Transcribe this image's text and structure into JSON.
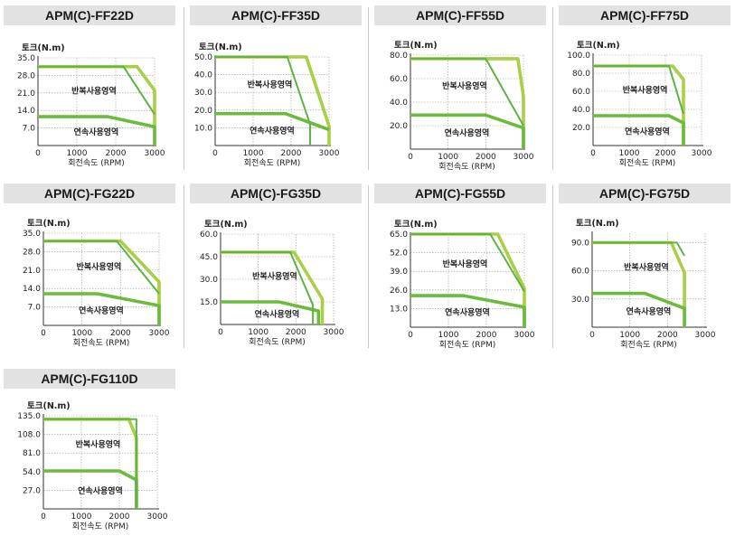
{
  "chart_data": [
    {
      "type": "line",
      "title": "APM(C)-FF22D",
      "ylabel": "토크(N.m)",
      "xlabel": "회전속도 (RPM)",
      "xlim": [
        0,
        3000
      ],
      "ylim": [
        0,
        35
      ],
      "xticks": [
        0,
        1000,
        2000,
        3000
      ],
      "xtick_labels": [
        "0",
        "1000",
        "2000",
        "3000"
      ],
      "yticks": [
        7,
        14,
        21,
        28,
        35
      ],
      "ytick_labels": [
        "7.0",
        "14.0",
        "21.0",
        "28.0",
        "35.0"
      ],
      "regions": {
        "repeated": "반복사용영역",
        "continuous": "연속사용영역"
      },
      "series": [
        {
          "role": "repeated-light",
          "x": [
            0,
            2550,
            3000,
            3000
          ],
          "y": [
            31.5,
            31.5,
            22,
            7
          ]
        },
        {
          "role": "repeated-dark",
          "x": [
            0,
            2200,
            3000
          ],
          "y": [
            31.5,
            31.5,
            12.5
          ]
        },
        {
          "role": "continuous",
          "x": [
            0,
            1800,
            3000,
            3000
          ],
          "y": [
            11.5,
            11.5,
            7.5,
            0
          ]
        }
      ]
    },
    {
      "type": "line",
      "title": "APM(C)-FF35D",
      "ylabel": "토크(N.m)",
      "xlabel": "회전속도 (RPM)",
      "xlim": [
        0,
        3000
      ],
      "ylim": [
        0,
        50
      ],
      "xticks": [
        0,
        1000,
        2000,
        3000
      ],
      "xtick_labels": [
        "0",
        "1000",
        "2000",
        "3000"
      ],
      "yticks": [
        10,
        20,
        30,
        40,
        50
      ],
      "ytick_labels": [
        "10.0",
        "20.0",
        "30.0",
        "40.0",
        "50.0"
      ],
      "regions": {
        "repeated": "반복사용영역",
        "continuous": "연속사용영역"
      },
      "series": [
        {
          "role": "repeated-light",
          "x": [
            0,
            2400,
            3000,
            3000
          ],
          "y": [
            50,
            50,
            11,
            0
          ]
        },
        {
          "role": "repeated-dark",
          "x": [
            0,
            1900,
            2500,
            2500
          ],
          "y": [
            50,
            50,
            12,
            0
          ]
        },
        {
          "role": "continuous",
          "x": [
            0,
            1850,
            2550,
            3000
          ],
          "y": [
            18,
            18,
            12.5,
            9
          ]
        }
      ]
    },
    {
      "type": "line",
      "title": "APM(C)-FF55D",
      "ylabel": "토크(N.m)",
      "xlabel": "회전속도 (RPM)",
      "xlim": [
        0,
        3000
      ],
      "ylim": [
        0,
        80
      ],
      "xticks": [
        0,
        1000,
        2000,
        3000
      ],
      "xtick_labels": [
        "0",
        "1000",
        "2000",
        "3000"
      ],
      "yticks": [
        20,
        40,
        60,
        80
      ],
      "ytick_labels": [
        "20.0",
        "40.0",
        "60.0",
        "80.0"
      ],
      "regions": {
        "repeated": "반복사용영역",
        "continuous": "연속사용영역"
      },
      "series": [
        {
          "role": "repeated-light",
          "x": [
            0,
            2850,
            3000,
            3000
          ],
          "y": [
            77,
            77,
            45,
            0
          ]
        },
        {
          "role": "repeated-dark",
          "x": [
            0,
            2000,
            3000
          ],
          "y": [
            77,
            77,
            20
          ]
        },
        {
          "role": "continuous",
          "x": [
            0,
            2000,
            3000,
            3000
          ],
          "y": [
            29,
            29,
            18,
            0
          ]
        }
      ]
    },
    {
      "type": "line",
      "title": "APM(C)-FF75D",
      "ylabel": "토크(N.m)",
      "xlabel": "회전속도 (RPM)",
      "xlim": [
        0,
        3000
      ],
      "ylim": [
        0,
        100
      ],
      "xticks": [
        0,
        1000,
        2000,
        3000
      ],
      "xtick_labels": [
        "0",
        "1000",
        "2000",
        "3000"
      ],
      "yticks": [
        20,
        40,
        60,
        80,
        100
      ],
      "ytick_labels": [
        "20.0",
        "40.0",
        "60.0",
        "80.0",
        "100.0"
      ],
      "regions": {
        "repeated": "반복사용영역",
        "continuous": "연속사용영역"
      },
      "series": [
        {
          "role": "repeated-light",
          "x": [
            0,
            2200,
            2500,
            2500
          ],
          "y": [
            88,
            88,
            73,
            0
          ]
        },
        {
          "role": "repeated-dark",
          "x": [
            0,
            2100,
            2500
          ],
          "y": [
            88,
            88,
            35
          ]
        },
        {
          "role": "continuous",
          "x": [
            0,
            2100,
            2500,
            2500
          ],
          "y": [
            33,
            33,
            25,
            0
          ]
        }
      ]
    },
    {
      "type": "line",
      "title": "APM(C)-FG22D",
      "ylabel": "토크(N.m)",
      "xlabel": "회전속도 (RPM)",
      "xlim": [
        0,
        3000
      ],
      "ylim": [
        0,
        35
      ],
      "xticks": [
        0,
        1000,
        2000,
        3000
      ],
      "xtick_labels": [
        "0",
        "1000",
        "2000",
        "3000"
      ],
      "yticks": [
        7,
        14,
        21,
        28,
        35
      ],
      "ytick_labels": [
        "7.0",
        "14.0",
        "21.0",
        "28.0",
        "35.0"
      ],
      "regions": {
        "repeated": "반복사용영역",
        "continuous": "연속사용영역"
      },
      "series": [
        {
          "role": "repeated-light",
          "x": [
            0,
            2000,
            3000,
            3000
          ],
          "y": [
            32,
            32,
            16.5,
            0
          ]
        },
        {
          "role": "repeated-dark",
          "x": [
            0,
            1900,
            3000
          ],
          "y": [
            32,
            32,
            12
          ]
        },
        {
          "role": "continuous",
          "x": [
            0,
            1400,
            3000,
            3000
          ],
          "y": [
            12,
            12,
            7.5,
            0
          ]
        }
      ]
    },
    {
      "type": "line",
      "title": "APM(C)-FG35D",
      "ylabel": "토크(N.m)",
      "xlabel": "회전속도 (RPM)",
      "xlim": [
        0,
        3000
      ],
      "ylim": [
        0,
        60
      ],
      "xticks": [
        0,
        1000,
        2000,
        3000
      ],
      "xtick_labels": [
        "0",
        "1000",
        "2000",
        "3000"
      ],
      "yticks": [
        15,
        30,
        45,
        60
      ],
      "ytick_labels": [
        "15.0",
        "30.0",
        "45.0",
        "60.0"
      ],
      "regions": {
        "repeated": "반복사용영역",
        "continuous": "연속사용영역"
      },
      "series": [
        {
          "role": "repeated-light",
          "x": [
            0,
            1950,
            2700,
            2700
          ],
          "y": [
            48,
            48,
            17,
            0
          ]
        },
        {
          "role": "repeated-dark",
          "x": [
            0,
            1850,
            2450,
            2450
          ],
          "y": [
            48,
            48,
            13,
            0
          ]
        },
        {
          "role": "continuous",
          "x": [
            0,
            1550,
            2600,
            2600
          ],
          "y": [
            15,
            15,
            9,
            0
          ]
        }
      ]
    },
    {
      "type": "line",
      "title": "APM(C)-FG55D",
      "ylabel": "토크(N.m)",
      "xlabel": "회전속도 (RPM)",
      "xlim": [
        0,
        3000
      ],
      "ylim": [
        0,
        65
      ],
      "xticks": [
        0,
        1000,
        2000,
        3000
      ],
      "xtick_labels": [
        "0",
        "1000",
        "2000",
        "3000"
      ],
      "yticks": [
        13,
        26,
        39,
        52,
        65
      ],
      "ytick_labels": [
        "13.0",
        "26.0",
        "39.0",
        "52.0",
        "65.0"
      ],
      "regions": {
        "repeated": "반복사용영역",
        "continuous": "연속사용영역"
      },
      "series": [
        {
          "role": "repeated-light",
          "x": [
            0,
            2300,
            3000,
            3000
          ],
          "y": [
            65,
            65,
            27,
            0
          ]
        },
        {
          "role": "repeated-dark",
          "x": [
            0,
            2100,
            3000
          ],
          "y": [
            65,
            65,
            25
          ]
        },
        {
          "role": "continuous",
          "x": [
            0,
            1400,
            3000,
            3000
          ],
          "y": [
            22,
            22,
            14,
            0
          ]
        }
      ]
    },
    {
      "type": "line",
      "title": "APM(C)-FG75D",
      "ylabel": "토크(N.m)",
      "xlabel": "회전속도 (RPM)",
      "xlim": [
        0,
        3000
      ],
      "ylim": [
        0,
        100
      ],
      "xticks": [
        0,
        1000,
        2000,
        3000
      ],
      "xtick_labels": [
        "0",
        "1000",
        "2000",
        "3000"
      ],
      "yticks": [
        30,
        60,
        90
      ],
      "ytick_labels": [
        "30.0",
        "60.0",
        "90.0"
      ],
      "regions": {
        "repeated": "반복사용영역",
        "continuous": "연속사용영역"
      },
      "series": [
        {
          "role": "repeated-light",
          "x": [
            0,
            2100,
            2450,
            2450
          ],
          "y": [
            90,
            90,
            58,
            0
          ]
        },
        {
          "role": "repeated-dark",
          "x": [
            0,
            2250,
            2450
          ],
          "y": [
            90,
            90,
            76
          ]
        },
        {
          "role": "continuous",
          "x": [
            0,
            1400,
            2450,
            2450
          ],
          "y": [
            36,
            36,
            20,
            0
          ]
        }
      ]
    },
    {
      "type": "line",
      "title": "APM(C)-FG110D",
      "ylabel": "토크(N.m)",
      "xlabel": "회전속도 (RPM)",
      "xlim": [
        0,
        3000
      ],
      "ylim": [
        0,
        135
      ],
      "xticks": [
        0,
        1000,
        2000,
        3000
      ],
      "xtick_labels": [
        "0",
        "1000",
        "2000",
        "3000"
      ],
      "yticks": [
        27,
        54,
        81,
        108,
        135
      ],
      "ytick_labels": [
        "27.0",
        "54.0",
        "81.0",
        "108.0",
        "135.0"
      ],
      "regions": {
        "repeated": "반복사용영역",
        "continuous": "연속사용영역"
      },
      "series": [
        {
          "role": "repeated-light",
          "x": [
            0,
            2250,
            2450,
            2450
          ],
          "y": [
            130,
            130,
            103,
            0
          ]
        },
        {
          "role": "repeated-dark",
          "x": [
            0,
            2450,
            2450
          ],
          "y": [
            130,
            130,
            0
          ]
        },
        {
          "role": "continuous",
          "x": [
            0,
            2000,
            2450,
            2450
          ],
          "y": [
            55,
            55,
            42,
            0
          ]
        }
      ]
    }
  ],
  "colors": {
    "repeated_light": "#a8cf45",
    "repeated_dark": "#5fb246",
    "continuous": "#6cbb3c",
    "grid": "#9a9a9a",
    "axis": "#333333",
    "header_bg": "#e2e2e2"
  }
}
